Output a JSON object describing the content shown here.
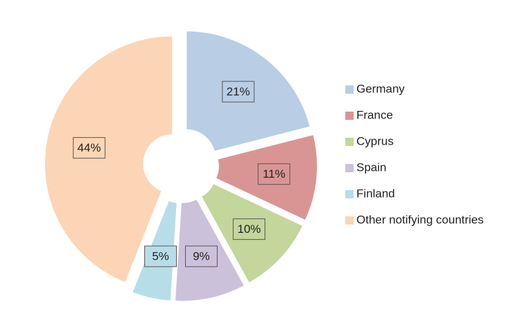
{
  "chart_data": {
    "type": "donut",
    "categories": [
      "Germany",
      "France",
      "Cyprus",
      "Spain",
      "Finland",
      "Other notifying countries"
    ],
    "values": [
      21,
      11,
      10,
      9,
      5,
      44
    ],
    "value_labels": [
      "21%",
      "11%",
      "10%",
      "9%",
      "5%",
      "44%"
    ],
    "colors": [
      "#b9cde5",
      "#d99594",
      "#c3d69b",
      "#ccc1da",
      "#b7dee8",
      "#fbd5b5"
    ]
  }
}
